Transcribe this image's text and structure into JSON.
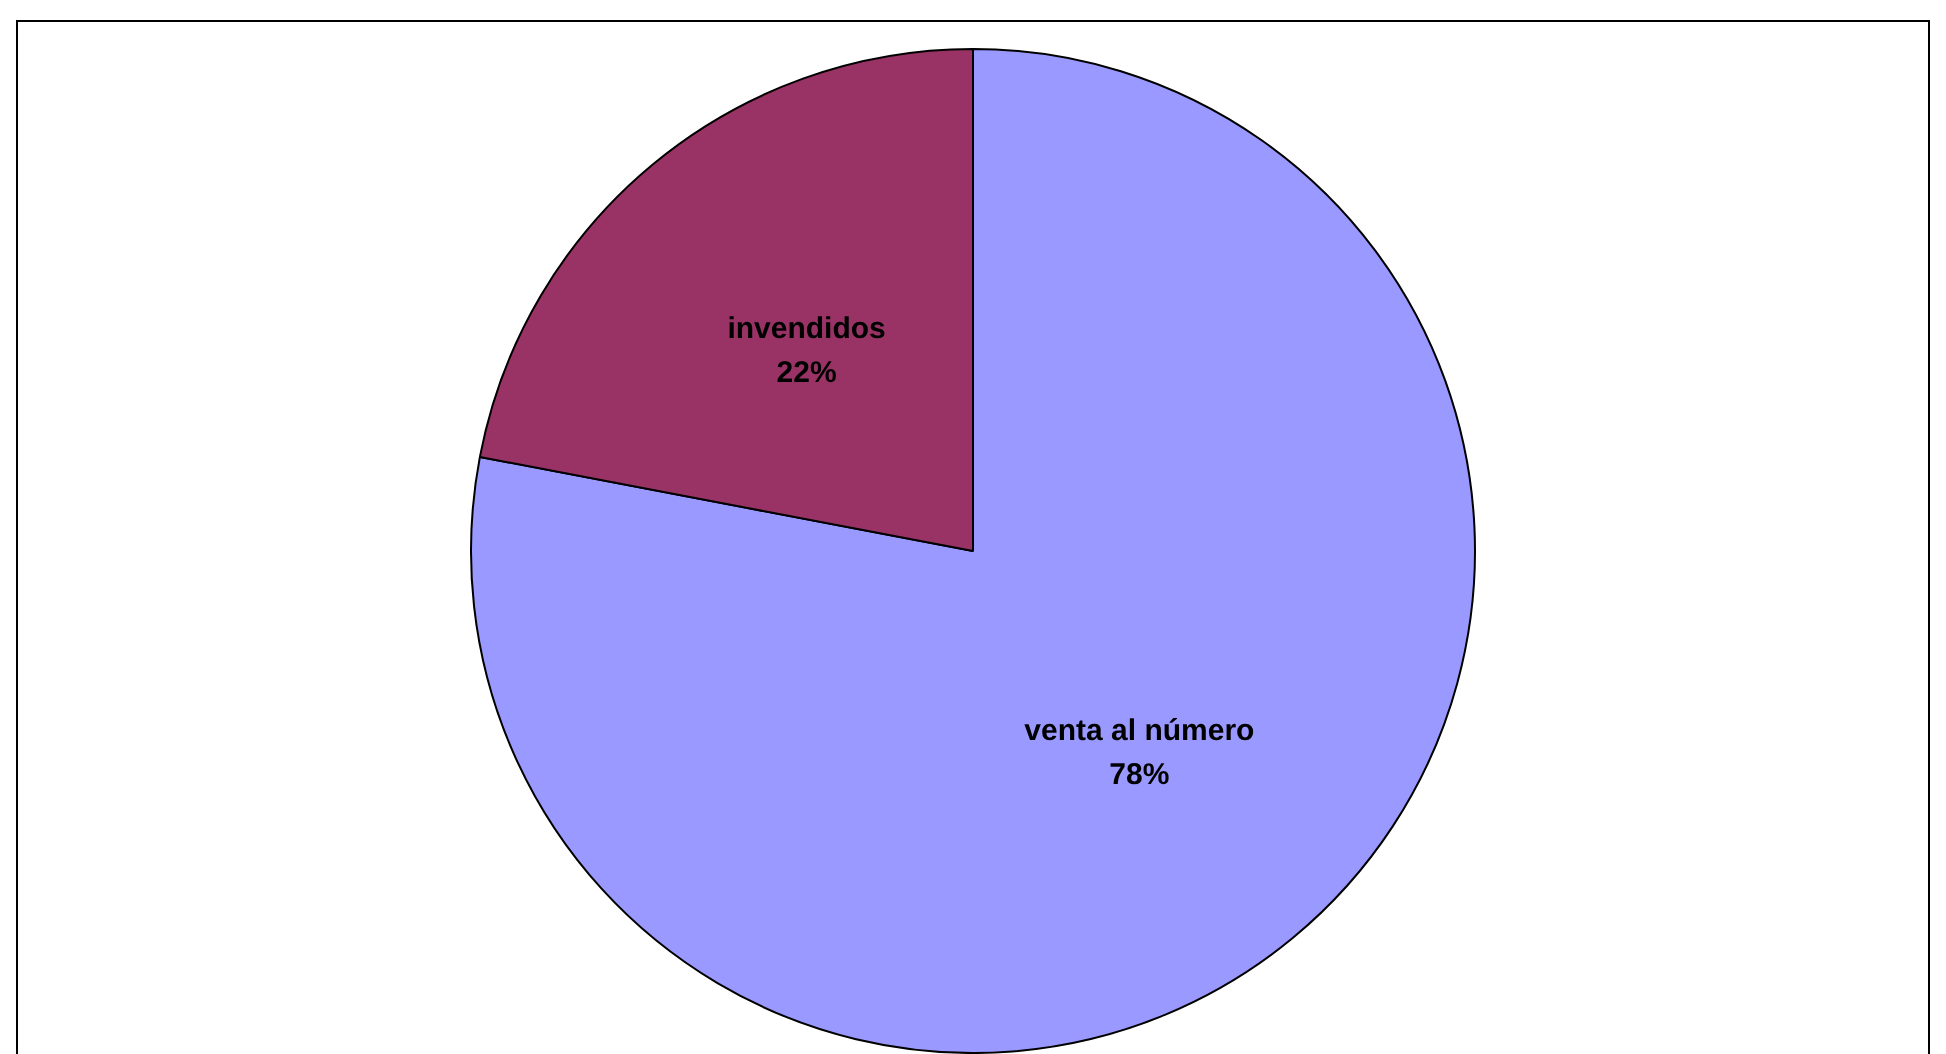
{
  "chart_data": {
    "type": "pie",
    "categories": [
      "venta al número",
      "invendidos"
    ],
    "values": [
      78,
      22
    ],
    "colors": [
      "#9999ff",
      "#993366"
    ],
    "value_labels": [
      "78%",
      "22%"
    ],
    "legend": false
  }
}
